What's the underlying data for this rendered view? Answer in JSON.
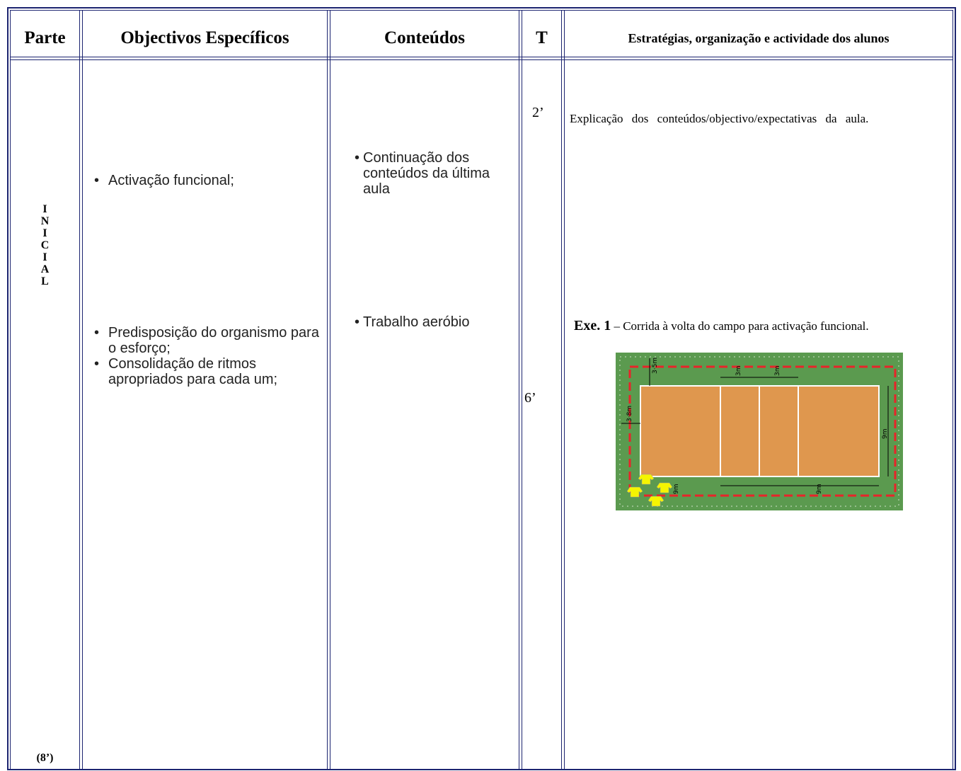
{
  "table": {
    "headers": [
      "Parte",
      "Objectivos Específicos",
      "Conteúdos",
      "T",
      "Estratégias, organização e actividade dos alunos"
    ],
    "part": {
      "letters": [
        "I",
        "N",
        "I",
        "C",
        "I",
        "A",
        "L"
      ],
      "duration": "(8’)"
    },
    "objectives": [
      "Activação funcional;",
      "Predisposição do organismo para o esforço;",
      "Consolidação de ritmos apropriados para cada um;"
    ],
    "contents": [
      "Continuação dos conteúdos da última aula",
      "Trabalho aeróbio"
    ],
    "times": [
      "2’",
      "6’"
    ],
    "strategies": [
      {
        "text": "Explicação dos conteúdos/objectivo/expectativas da aula."
      },
      {
        "label": "Exe. 1",
        "text": "– Corrida à volta do campo para activação funcional."
      }
    ],
    "court_labels": [
      "3·5m",
      "3m",
      "3m",
      "3·8m",
      "9m",
      "9m",
      "9m"
    ]
  }
}
